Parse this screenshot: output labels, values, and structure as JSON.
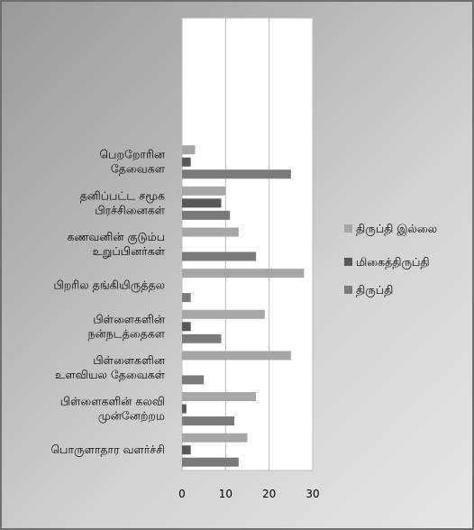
{
  "chart_data": {
    "type": "bar",
    "orientation": "horizontal",
    "categories": [
      [
        "பெறறோரின",
        "தேவைகள"
      ],
      [
        "தனிப்பட்ட சமூக",
        "பிரச்சினைகள்"
      ],
      [
        "கணவனின் குடும்ப",
        "உறுப்பினர்கள்"
      ],
      [
        "பிறரில தங்கியிருத்தல"
      ],
      [
        "பிள்ளைகளின்",
        "நன்நடத்தைகள"
      ],
      [
        "பிள்ளைகளின",
        "உளவியல தேவைகள்"
      ],
      [
        "பிள்ளைகளின் கலவி",
        "முன்னேற்றம"
      ],
      [
        "பொருளாதார வளர்ச்சி"
      ]
    ],
    "series": [
      {
        "name": "திருப்தி இல்லை",
        "color": "#a6a6a6",
        "values": [
          3,
          10,
          13,
          28,
          19,
          25,
          17,
          15
        ]
      },
      {
        "name": "மிகைத்திருப்தி",
        "color": "#595959",
        "values": [
          2,
          9,
          0,
          0,
          2,
          0,
          1,
          2
        ]
      },
      {
        "name": "திருப்தி",
        "color": "#7a7a7a",
        "values": [
          25,
          11,
          17,
          2,
          9,
          5,
          12,
          13
        ]
      }
    ],
    "xlim": [
      0,
      30
    ],
    "x_ticks": [
      "0",
      "10",
      "20",
      "30"
    ],
    "empty_top_slots": 3,
    "grid": true,
    "legend_position": "right"
  }
}
